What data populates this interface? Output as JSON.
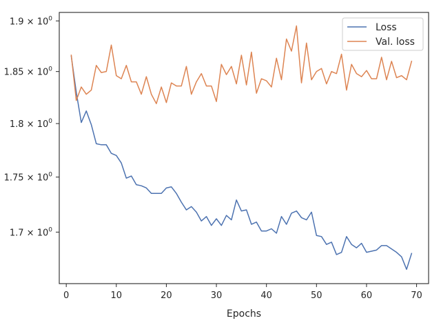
{
  "chart_data": {
    "type": "line",
    "title": "",
    "xlabel": "Epochs",
    "ylabel": "",
    "xlim": [
      -1.4,
      72.4
    ],
    "ylim": [
      1.6545,
      1.9085
    ],
    "yscale": "log",
    "grid": false,
    "legend_position": "top-right",
    "x_ticks": [
      0,
      10,
      20,
      30,
      40,
      50,
      60,
      70
    ],
    "x_tick_labels": [
      "0",
      "10",
      "20",
      "30",
      "40",
      "50",
      "60",
      "70"
    ],
    "y_ticks": [
      1.7,
      1.75,
      1.8,
      1.85,
      1.9
    ],
    "y_tick_mantissas": [
      "1.7",
      "1.75",
      "1.8",
      "1.85",
      "1.9"
    ],
    "y_tick_times": "×",
    "y_tick_base": "10",
    "y_tick_exp": "0",
    "x": [
      1,
      2,
      3,
      4,
      5,
      6,
      7,
      8,
      9,
      10,
      11,
      12,
      13,
      14,
      15,
      16,
      17,
      18,
      19,
      20,
      21,
      22,
      23,
      24,
      25,
      26,
      27,
      28,
      29,
      30,
      31,
      32,
      33,
      34,
      35,
      36,
      37,
      38,
      39,
      40,
      41,
      42,
      43,
      44,
      45,
      46,
      47,
      48,
      49,
      50,
      51,
      52,
      53,
      54,
      55,
      56,
      57,
      58,
      59,
      60,
      61,
      62,
      63,
      64,
      65,
      66,
      67,
      68,
      69
    ],
    "series": [
      {
        "name": "Loss",
        "color": "#4c72b0",
        "values": [
          1.865,
          1.83,
          1.801,
          1.812,
          1.799,
          1.781,
          1.78,
          1.78,
          1.772,
          1.77,
          1.763,
          1.749,
          1.751,
          1.743,
          1.742,
          1.74,
          1.735,
          1.735,
          1.735,
          1.74,
          1.741,
          1.735,
          1.727,
          1.72,
          1.723,
          1.718,
          1.71,
          1.714,
          1.706,
          1.712,
          1.706,
          1.715,
          1.711,
          1.729,
          1.719,
          1.72,
          1.707,
          1.709,
          1.701,
          1.701,
          1.703,
          1.699,
          1.714,
          1.707,
          1.717,
          1.719,
          1.713,
          1.711,
          1.718,
          1.697,
          1.696,
          1.689,
          1.691,
          1.68,
          1.682,
          1.696,
          1.689,
          1.686,
          1.69,
          1.682,
          1.683,
          1.684,
          1.688,
          1.688,
          1.685,
          1.682,
          1.678,
          1.667,
          1.681
        ]
      },
      {
        "name": "Val. loss",
        "color": "#dd8452",
        "values": [
          1.866,
          1.822,
          1.835,
          1.828,
          1.832,
          1.856,
          1.849,
          1.85,
          1.876,
          1.846,
          1.843,
          1.856,
          1.84,
          1.84,
          1.828,
          1.845,
          1.828,
          1.819,
          1.835,
          1.82,
          1.839,
          1.836,
          1.836,
          1.855,
          1.828,
          1.84,
          1.848,
          1.836,
          1.836,
          1.821,
          1.857,
          1.847,
          1.855,
          1.838,
          1.866,
          1.837,
          1.869,
          1.829,
          1.843,
          1.841,
          1.835,
          1.863,
          1.842,
          1.882,
          1.87,
          1.895,
          1.839,
          1.878,
          1.842,
          1.85,
          1.853,
          1.838,
          1.85,
          1.848,
          1.867,
          1.832,
          1.857,
          1.848,
          1.845,
          1.851,
          1.843,
          1.843,
          1.864,
          1.842,
          1.86,
          1.844,
          1.846,
          1.842,
          1.86
        ]
      }
    ]
  }
}
